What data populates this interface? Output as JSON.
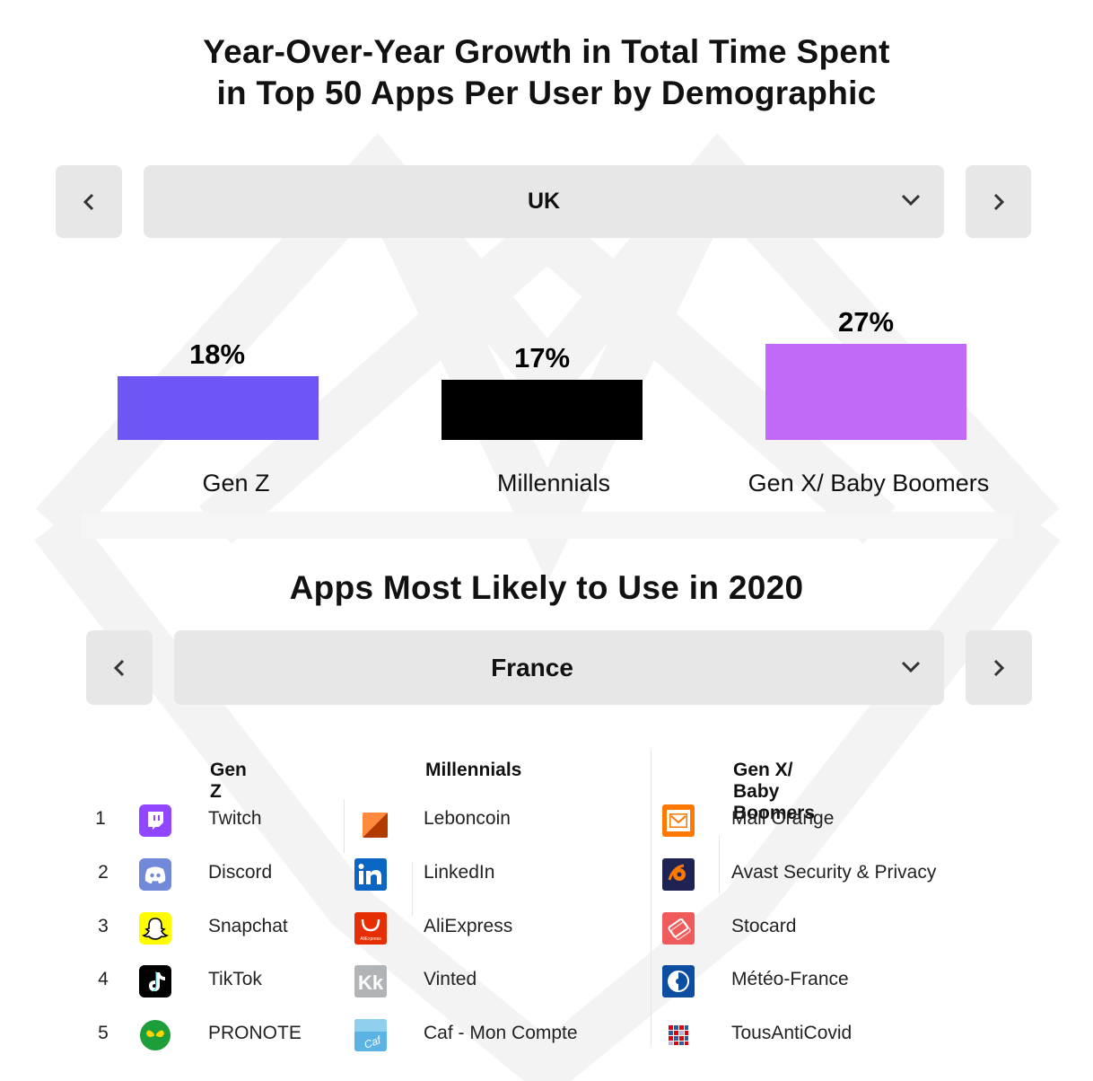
{
  "chart": {
    "title_line1": "Year-Over-Year Growth in Total Time Spent",
    "title_line2": "in Top 50 Apps Per User by Demographic",
    "selector": {
      "value": "UK"
    }
  },
  "chart_data": {
    "type": "bar",
    "title": "Year-Over-Year Growth in Total Time Spent in Top 50 Apps Per User by Demographic",
    "categories": [
      "Gen Z",
      "Millennials",
      "Gen X/ Baby Boomers"
    ],
    "values": [
      18,
      17,
      27
    ],
    "value_labels": [
      "18%",
      "17%",
      "27%"
    ],
    "colors": [
      "#6d56f4",
      "#000000",
      "#c169f9"
    ],
    "ylim": [
      0,
      27
    ],
    "grid": false,
    "legend": "none"
  },
  "apps": {
    "title": "Apps Most Likely to Use in 2020",
    "selector": {
      "value": "France"
    },
    "columns": [
      {
        "header": "Gen Z",
        "items": [
          {
            "rank": "1",
            "name": "Twitch",
            "icon": "twitch-icon"
          },
          {
            "rank": "2",
            "name": "Discord",
            "icon": "discord-icon"
          },
          {
            "rank": "3",
            "name": "Snapchat",
            "icon": "snapchat-icon"
          },
          {
            "rank": "4",
            "name": "TikTok",
            "icon": "tiktok-icon"
          },
          {
            "rank": "5",
            "name": "PRONOTE",
            "icon": "pronote-icon"
          }
        ]
      },
      {
        "header": "Millennials",
        "items": [
          {
            "name": "Leboncoin",
            "icon": "leboncoin-icon"
          },
          {
            "name": "LinkedIn",
            "icon": "linkedin-icon"
          },
          {
            "name": "AliExpress",
            "icon": "aliexpress-icon"
          },
          {
            "name": "Vinted",
            "icon": "vinted-icon"
          },
          {
            "name": "Caf - Mon Compte",
            "icon": "caf-icon"
          }
        ]
      },
      {
        "header": "Gen X/ Baby Boomers",
        "items": [
          {
            "name": "Mail Orange",
            "icon": "mail-orange-icon"
          },
          {
            "name": "Avast Security & Privacy",
            "icon": "avast-icon"
          },
          {
            "name": "Stocard",
            "icon": "stocard-icon"
          },
          {
            "name": "Météo-France",
            "icon": "meteo-france-icon"
          },
          {
            "name": "TousAntiCovid",
            "icon": "tousanticovid-icon"
          }
        ]
      }
    ],
    "icon_text": {
      "aliexpress": "AliExpress",
      "vinted": "Kk",
      "caf": "Caf"
    }
  }
}
